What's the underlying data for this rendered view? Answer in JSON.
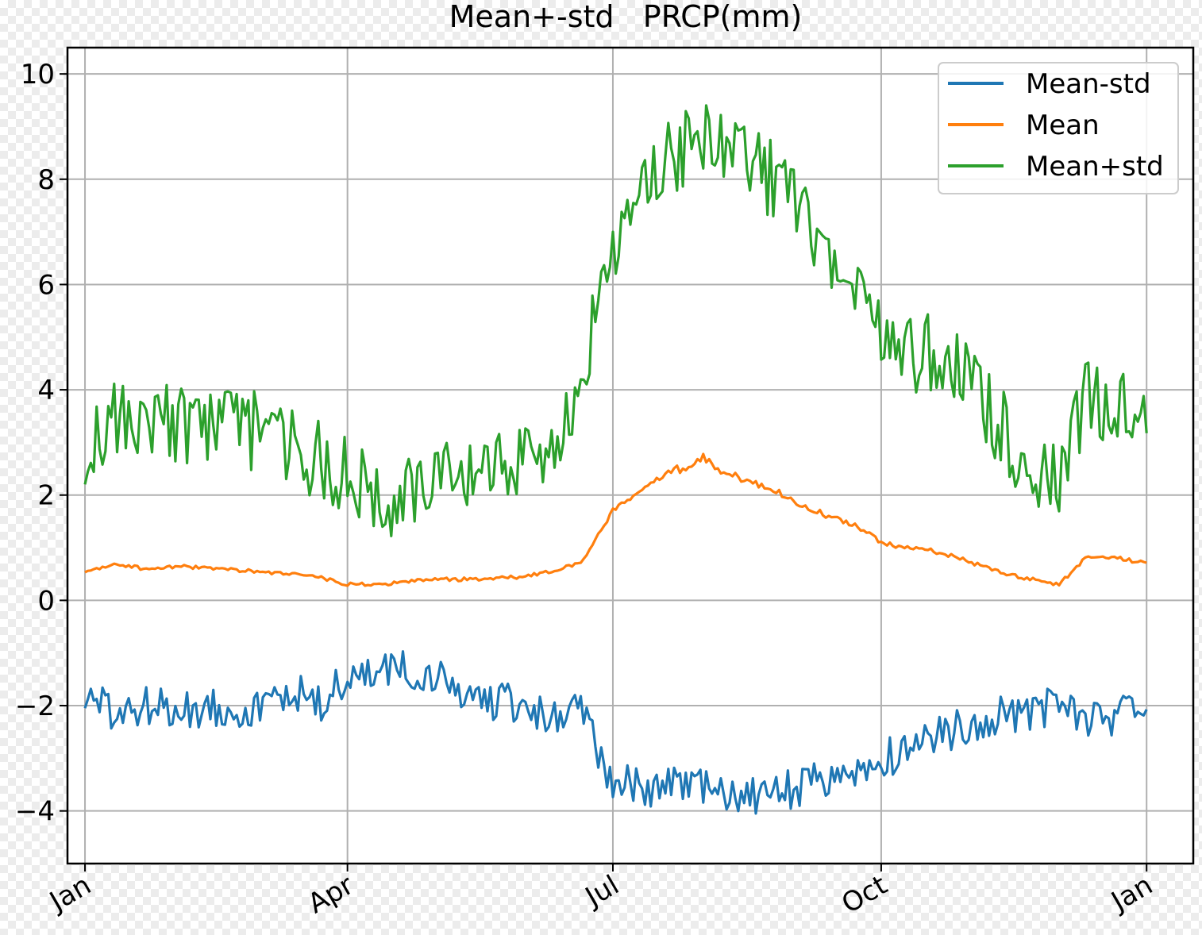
{
  "chart_data": {
    "type": "line",
    "title": "Mean+-std   PRCP(mm)",
    "xlabel": "",
    "ylabel": "",
    "x_ticks": [
      "Jan",
      "Apr",
      "Jul",
      "Oct",
      "Jan"
    ],
    "y_ticks": [
      -4,
      -2,
      0,
      2,
      4,
      6,
      8,
      10
    ],
    "ylim": [
      -5,
      10.5
    ],
    "xlim_days": [
      -6,
      380
    ],
    "grid": true,
    "legend_position": "top-right",
    "x": [
      0,
      10,
      20,
      31,
      45,
      59,
      70,
      80,
      90,
      100,
      110,
      120,
      135,
      151,
      160,
      170,
      181,
      190,
      200,
      212,
      220,
      232,
      243,
      255,
      265,
      273,
      280,
      290,
      300,
      315,
      325,
      334,
      343,
      355,
      364
    ],
    "series": [
      {
        "name": "Mean-std",
        "color": "#1f77b4",
        "values": [
          -1.8,
          -2.2,
          -2.0,
          -2.1,
          -2.0,
          -2.1,
          -1.7,
          -2.0,
          -1.5,
          -1.4,
          -1.3,
          -1.5,
          -1.9,
          -2.0,
          -2.3,
          -2.1,
          -3.4,
          -3.6,
          -3.5,
          -3.6,
          -3.7,
          -3.7,
          -3.6,
          -3.4,
          -3.2,
          -3.1,
          -2.8,
          -2.6,
          -2.4,
          -2.1,
          -2.2,
          -1.8,
          -2.3,
          -2.2,
          -2.1
        ]
      },
      {
        "name": "Mean",
        "color": "#ff7f0e",
        "values": [
          0.55,
          0.7,
          0.6,
          0.65,
          0.6,
          0.55,
          0.5,
          0.45,
          0.3,
          0.3,
          0.35,
          0.4,
          0.4,
          0.45,
          0.55,
          0.7,
          1.7,
          2.1,
          2.4,
          2.7,
          2.4,
          2.2,
          1.9,
          1.6,
          1.4,
          1.1,
          1.0,
          0.95,
          0.8,
          0.5,
          0.4,
          0.3,
          0.8,
          0.8,
          0.7
        ]
      },
      {
        "name": "Mean+std",
        "color": "#2ca02c",
        "values": [
          2.9,
          3.6,
          3.3,
          3.4,
          3.3,
          3.2,
          2.9,
          2.7,
          2.3,
          1.9,
          2.0,
          2.3,
          2.3,
          2.7,
          3.0,
          4.1,
          6.7,
          7.9,
          8.4,
          8.8,
          8.4,
          8.2,
          7.6,
          6.8,
          5.7,
          5.1,
          4.6,
          4.7,
          4.3,
          3.2,
          2.4,
          2.2,
          3.9,
          3.7,
          3.4
        ]
      }
    ],
    "background": "#ffffff",
    "grid_color": "#b0b0b0"
  }
}
